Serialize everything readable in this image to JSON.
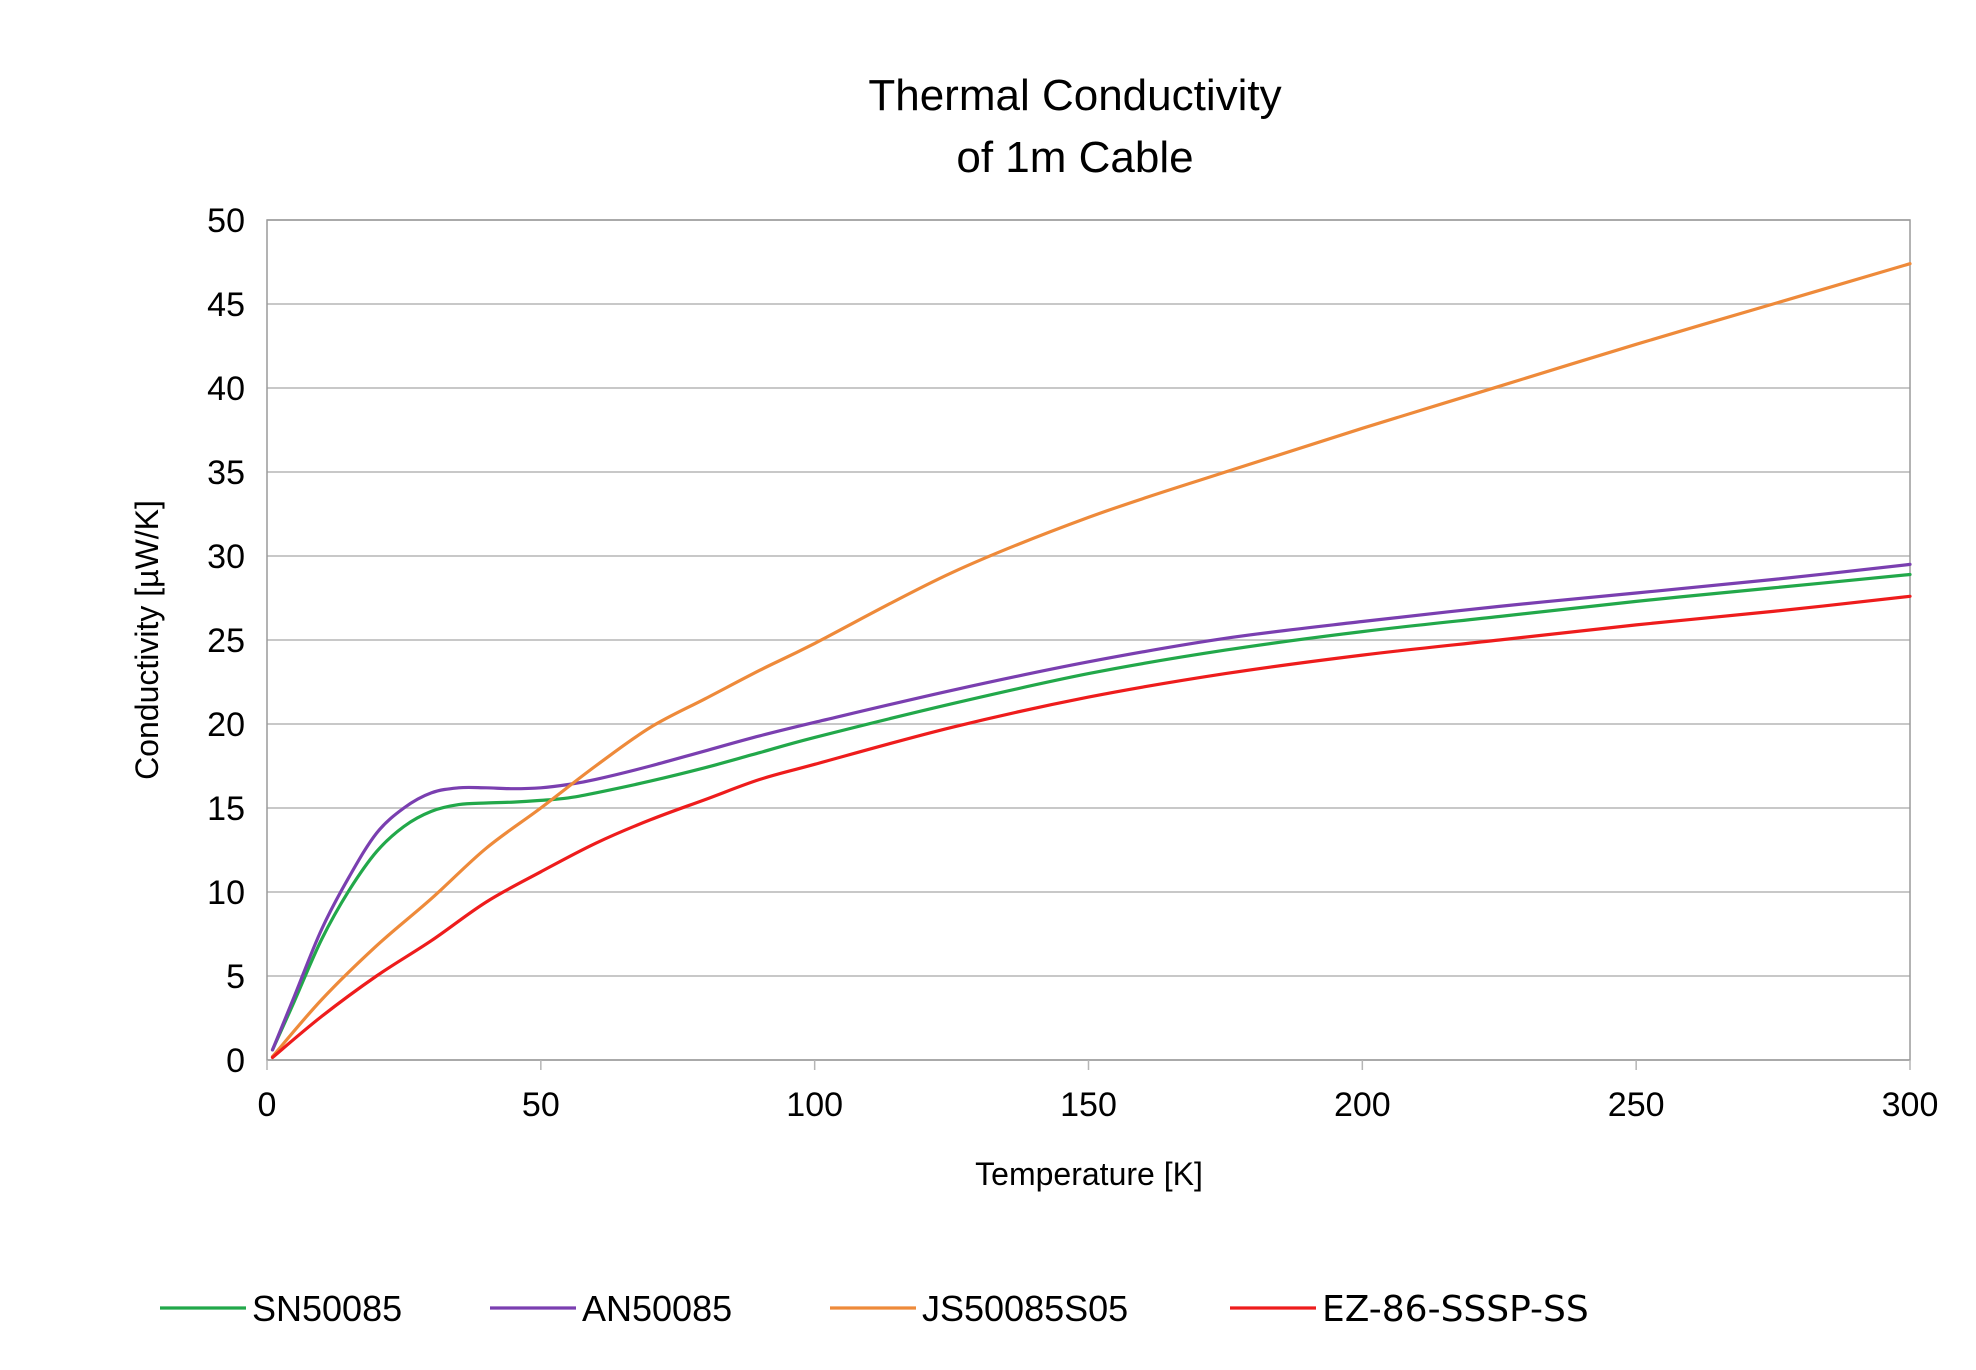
{
  "chart_data": {
    "type": "line",
    "title": [
      "Thermal Conductivity",
      "of 1m Cable"
    ],
    "xlabel": "Temperature [K]",
    "ylabel": "Conductivity [µW/K]",
    "xlim": [
      0,
      300
    ],
    "ylim": [
      0,
      50
    ],
    "x_ticks": [
      0,
      50,
      100,
      150,
      200,
      250,
      300
    ],
    "y_ticks": [
      0,
      5,
      10,
      15,
      20,
      25,
      30,
      35,
      40,
      45,
      50
    ],
    "grid": "horizontal",
    "legend_position": "bottom",
    "series": [
      {
        "name": "SN50085",
        "color": "#22a84a",
        "points": [
          [
            1,
            0.6
          ],
          [
            5,
            3.5
          ],
          [
            10,
            7.2
          ],
          [
            15,
            10.1
          ],
          [
            20,
            12.4
          ],
          [
            25,
            13.9
          ],
          [
            30,
            14.8
          ],
          [
            35,
            15.2
          ],
          [
            40,
            15.3
          ],
          [
            45,
            15.35
          ],
          [
            50,
            15.45
          ],
          [
            55,
            15.6
          ],
          [
            60,
            15.9
          ],
          [
            70,
            16.6
          ],
          [
            80,
            17.4
          ],
          [
            90,
            18.3
          ],
          [
            100,
            19.2
          ],
          [
            125,
            21.2
          ],
          [
            150,
            23.0
          ],
          [
            175,
            24.4
          ],
          [
            200,
            25.5
          ],
          [
            225,
            26.4
          ],
          [
            250,
            27.3
          ],
          [
            275,
            28.1
          ],
          [
            300,
            28.9
          ]
        ]
      },
      {
        "name": "AN50085",
        "color": "#7a3fb0",
        "points": [
          [
            1,
            0.6
          ],
          [
            5,
            3.8
          ],
          [
            10,
            7.8
          ],
          [
            15,
            10.9
          ],
          [
            20,
            13.5
          ],
          [
            25,
            15.0
          ],
          [
            30,
            15.9
          ],
          [
            35,
            16.2
          ],
          [
            40,
            16.2
          ],
          [
            45,
            16.15
          ],
          [
            50,
            16.2
          ],
          [
            55,
            16.4
          ],
          [
            60,
            16.7
          ],
          [
            70,
            17.5
          ],
          [
            80,
            18.4
          ],
          [
            90,
            19.3
          ],
          [
            100,
            20.1
          ],
          [
            125,
            22.0
          ],
          [
            150,
            23.7
          ],
          [
            175,
            25.1
          ],
          [
            200,
            26.1
          ],
          [
            225,
            27.0
          ],
          [
            250,
            27.8
          ],
          [
            275,
            28.6
          ],
          [
            300,
            29.5
          ]
        ]
      },
      {
        "name": "JS50085S05",
        "color": "#ee8a3a",
        "points": [
          [
            1,
            0.2
          ],
          [
            10,
            3.6
          ],
          [
            20,
            6.8
          ],
          [
            30,
            9.6
          ],
          [
            40,
            12.6
          ],
          [
            50,
            15.0
          ],
          [
            60,
            17.5
          ],
          [
            70,
            19.8
          ],
          [
            80,
            21.5
          ],
          [
            90,
            23.2
          ],
          [
            100,
            24.8
          ],
          [
            125,
            29.0
          ],
          [
            150,
            32.3
          ],
          [
            175,
            35.0
          ],
          [
            200,
            37.6
          ],
          [
            225,
            40.1
          ],
          [
            250,
            42.6
          ],
          [
            275,
            45.0
          ],
          [
            300,
            47.4
          ]
        ]
      },
      {
        "name": "EZ-86-SSSP-SS",
        "color": "#ee1c1c",
        "points": [
          [
            1,
            0.15
          ],
          [
            10,
            2.6
          ],
          [
            20,
            5.0
          ],
          [
            30,
            7.1
          ],
          [
            40,
            9.4
          ],
          [
            50,
            11.2
          ],
          [
            60,
            12.9
          ],
          [
            70,
            14.3
          ],
          [
            80,
            15.5
          ],
          [
            90,
            16.7
          ],
          [
            100,
            17.6
          ],
          [
            125,
            19.8
          ],
          [
            150,
            21.6
          ],
          [
            175,
            23.0
          ],
          [
            200,
            24.1
          ],
          [
            225,
            25.0
          ],
          [
            250,
            25.9
          ],
          [
            275,
            26.7
          ],
          [
            300,
            27.6
          ]
        ]
      }
    ]
  }
}
